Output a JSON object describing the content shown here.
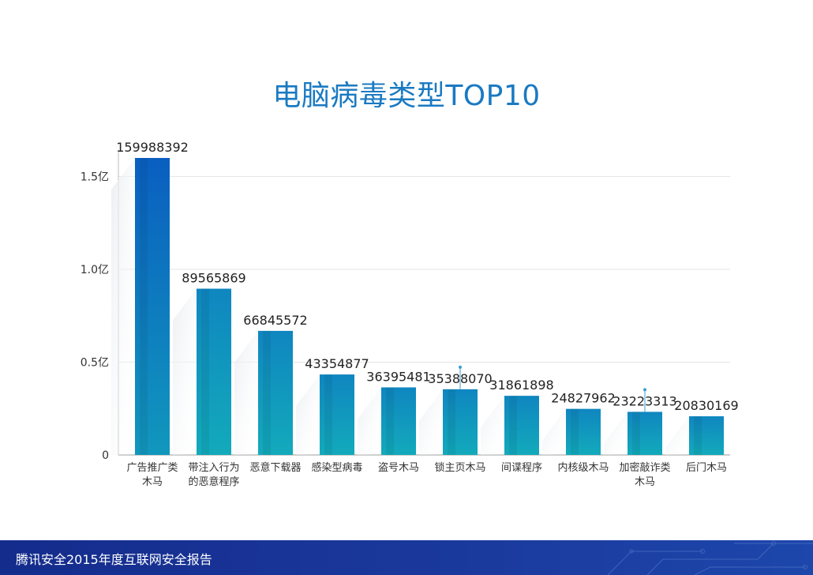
{
  "chart_data": {
    "type": "bar",
    "title": "电脑病毒类型TOP10",
    "categories": [
      [
        "广告推广类",
        "木马"
      ],
      [
        "带注入行为",
        "的恶意程序"
      ],
      [
        "恶意下载器"
      ],
      [
        "感染型病毒"
      ],
      [
        "盗号木马"
      ],
      [
        "锁主页木马"
      ],
      [
        "间谍程序"
      ],
      [
        "内核级木马"
      ],
      [
        "加密敲诈类",
        "木马"
      ],
      [
        "后门木马"
      ]
    ],
    "values": [
      159988392,
      89565869,
      66845572,
      43354877,
      36395481,
      35388070,
      31861898,
      24827962,
      23223313,
      20830169
    ],
    "value_labels": [
      "159988392",
      "89565869",
      "66845572",
      "43354877",
      "36395481",
      "35388070",
      "31861898",
      "24827962",
      "23223313",
      "20830169"
    ],
    "yticks": [
      {
        "value": 0,
        "label": "0"
      },
      {
        "value": 50000000,
        "label": "0.5亿"
      },
      {
        "value": 100000000,
        "label": "1.0亿"
      },
      {
        "value": 150000000,
        "label": "1.5亿"
      }
    ],
    "ylim": [
      0,
      160000000
    ],
    "grid": true,
    "colors": {
      "top_bar": "#0a63c0",
      "bar_top": "#0e8fc0",
      "bar_bottom": "#12a9bb",
      "grid": "#e6e6e6"
    }
  },
  "footer": {
    "text": "腾讯安全2015年度互联网安全报告"
  }
}
